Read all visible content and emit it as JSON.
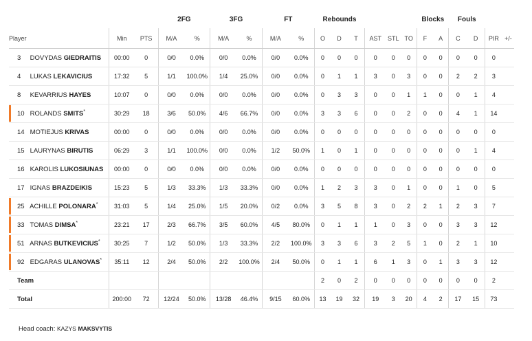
{
  "headers": {
    "groups": {
      "fg2": "2FG",
      "fg3": "3FG",
      "ft": "FT",
      "reb": "Rebounds",
      "blk": "Blocks",
      "fouls": "Fouls"
    },
    "cols": {
      "player": "Player",
      "min": "Min",
      "pts": "PTS",
      "fg2_ma": "M/A",
      "fg2_pct": "%",
      "fg3_ma": "M/A",
      "fg3_pct": "%",
      "ft_ma": "M/A",
      "ft_pct": "%",
      "o": "O",
      "d": "D",
      "t": "T",
      "ast": "AST",
      "stl": "STL",
      "to": "TO",
      "bf": "F",
      "ba": "A",
      "fc": "C",
      "fd": "D",
      "pir": "PIR",
      "pm": "+/-"
    }
  },
  "players": [
    {
      "num": "3",
      "first": "DOVYDAS",
      "last": "GIEDRAITIS",
      "starter": false,
      "min": "00:00",
      "pts": "0",
      "fg2_ma": "0/0",
      "fg2_pct": "0.0%",
      "fg3_ma": "0/0",
      "fg3_pct": "0.0%",
      "ft_ma": "0/0",
      "ft_pct": "0.0%",
      "o": "0",
      "d": "0",
      "t": "0",
      "ast": "0",
      "stl": "0",
      "to": "0",
      "bf": "0",
      "ba": "0",
      "fc": "0",
      "fd": "0",
      "pir": "0",
      "pm": ""
    },
    {
      "num": "4",
      "first": "LUKAS",
      "last": "LEKAVICIUS",
      "starter": false,
      "min": "17:32",
      "pts": "5",
      "fg2_ma": "1/1",
      "fg2_pct": "100.0%",
      "fg3_ma": "1/4",
      "fg3_pct": "25.0%",
      "ft_ma": "0/0",
      "ft_pct": "0.0%",
      "o": "0",
      "d": "1",
      "t": "1",
      "ast": "3",
      "stl": "0",
      "to": "3",
      "bf": "0",
      "ba": "0",
      "fc": "2",
      "fd": "2",
      "pir": "3",
      "pm": ""
    },
    {
      "num": "8",
      "first": "KEVARRIUS",
      "last": "HAYES",
      "starter": false,
      "min": "10:07",
      "pts": "0",
      "fg2_ma": "0/0",
      "fg2_pct": "0.0%",
      "fg3_ma": "0/0",
      "fg3_pct": "0.0%",
      "ft_ma": "0/0",
      "ft_pct": "0.0%",
      "o": "0",
      "d": "3",
      "t": "3",
      "ast": "0",
      "stl": "0",
      "to": "1",
      "bf": "1",
      "ba": "0",
      "fc": "0",
      "fd": "1",
      "pir": "4",
      "pm": ""
    },
    {
      "num": "10",
      "first": "ROLANDS",
      "last": "SMITS",
      "starter": true,
      "min": "30:29",
      "pts": "18",
      "fg2_ma": "3/6",
      "fg2_pct": "50.0%",
      "fg3_ma": "4/6",
      "fg3_pct": "66.7%",
      "ft_ma": "0/0",
      "ft_pct": "0.0%",
      "o": "3",
      "d": "3",
      "t": "6",
      "ast": "0",
      "stl": "0",
      "to": "2",
      "bf": "0",
      "ba": "0",
      "fc": "4",
      "fd": "1",
      "pir": "14",
      "pm": ""
    },
    {
      "num": "14",
      "first": "MOTIEJUS",
      "last": "KRIVAS",
      "starter": false,
      "min": "00:00",
      "pts": "0",
      "fg2_ma": "0/0",
      "fg2_pct": "0.0%",
      "fg3_ma": "0/0",
      "fg3_pct": "0.0%",
      "ft_ma": "0/0",
      "ft_pct": "0.0%",
      "o": "0",
      "d": "0",
      "t": "0",
      "ast": "0",
      "stl": "0",
      "to": "0",
      "bf": "0",
      "ba": "0",
      "fc": "0",
      "fd": "0",
      "pir": "0",
      "pm": ""
    },
    {
      "num": "15",
      "first": "LAURYNAS",
      "last": "BIRUTIS",
      "starter": false,
      "min": "06:29",
      "pts": "3",
      "fg2_ma": "1/1",
      "fg2_pct": "100.0%",
      "fg3_ma": "0/0",
      "fg3_pct": "0.0%",
      "ft_ma": "1/2",
      "ft_pct": "50.0%",
      "o": "1",
      "d": "0",
      "t": "1",
      "ast": "0",
      "stl": "0",
      "to": "0",
      "bf": "0",
      "ba": "0",
      "fc": "0",
      "fd": "1",
      "pir": "4",
      "pm": ""
    },
    {
      "num": "16",
      "first": "KAROLIS",
      "last": "LUKOSIUNAS",
      "starter": false,
      "min": "00:00",
      "pts": "0",
      "fg2_ma": "0/0",
      "fg2_pct": "0.0%",
      "fg3_ma": "0/0",
      "fg3_pct": "0.0%",
      "ft_ma": "0/0",
      "ft_pct": "0.0%",
      "o": "0",
      "d": "0",
      "t": "0",
      "ast": "0",
      "stl": "0",
      "to": "0",
      "bf": "0",
      "ba": "0",
      "fc": "0",
      "fd": "0",
      "pir": "0",
      "pm": ""
    },
    {
      "num": "17",
      "first": "IGNAS",
      "last": "BRAZDEIKIS",
      "starter": false,
      "min": "15:23",
      "pts": "5",
      "fg2_ma": "1/3",
      "fg2_pct": "33.3%",
      "fg3_ma": "1/3",
      "fg3_pct": "33.3%",
      "ft_ma": "0/0",
      "ft_pct": "0.0%",
      "o": "1",
      "d": "2",
      "t": "3",
      "ast": "3",
      "stl": "0",
      "to": "1",
      "bf": "0",
      "ba": "0",
      "fc": "1",
      "fd": "0",
      "pir": "5",
      "pm": ""
    },
    {
      "num": "25",
      "first": "ACHILLE",
      "last": "POLONARA",
      "starter": true,
      "min": "31:03",
      "pts": "5",
      "fg2_ma": "1/4",
      "fg2_pct": "25.0%",
      "fg3_ma": "1/5",
      "fg3_pct": "20.0%",
      "ft_ma": "0/2",
      "ft_pct": "0.0%",
      "o": "3",
      "d": "5",
      "t": "8",
      "ast": "3",
      "stl": "0",
      "to": "2",
      "bf": "2",
      "ba": "1",
      "fc": "2",
      "fd": "3",
      "pir": "7",
      "pm": ""
    },
    {
      "num": "33",
      "first": "TOMAS",
      "last": "DIMSA",
      "starter": true,
      "min": "23:21",
      "pts": "17",
      "fg2_ma": "2/3",
      "fg2_pct": "66.7%",
      "fg3_ma": "3/5",
      "fg3_pct": "60.0%",
      "ft_ma": "4/5",
      "ft_pct": "80.0%",
      "o": "0",
      "d": "1",
      "t": "1",
      "ast": "1",
      "stl": "0",
      "to": "3",
      "bf": "0",
      "ba": "0",
      "fc": "3",
      "fd": "3",
      "pir": "12",
      "pm": ""
    },
    {
      "num": "51",
      "first": "ARNAS",
      "last": "BUTKEVICIUS",
      "starter": true,
      "min": "30:25",
      "pts": "7",
      "fg2_ma": "1/2",
      "fg2_pct": "50.0%",
      "fg3_ma": "1/3",
      "fg3_pct": "33.3%",
      "ft_ma": "2/2",
      "ft_pct": "100.0%",
      "o": "3",
      "d": "3",
      "t": "6",
      "ast": "3",
      "stl": "2",
      "to": "5",
      "bf": "1",
      "ba": "0",
      "fc": "2",
      "fd": "1",
      "pir": "10",
      "pm": ""
    },
    {
      "num": "92",
      "first": "EDGARAS",
      "last": "ULANOVAS",
      "starter": true,
      "min": "35:11",
      "pts": "12",
      "fg2_ma": "2/4",
      "fg2_pct": "50.0%",
      "fg3_ma": "2/2",
      "fg3_pct": "100.0%",
      "ft_ma": "2/4",
      "ft_pct": "50.0%",
      "o": "0",
      "d": "1",
      "t": "1",
      "ast": "6",
      "stl": "1",
      "to": "3",
      "bf": "0",
      "ba": "1",
      "fc": "3",
      "fd": "3",
      "pir": "12",
      "pm": ""
    }
  ],
  "starter_mark": "*",
  "team": {
    "label": "Team",
    "min": "",
    "pts": "",
    "fg2_ma": "",
    "fg2_pct": "",
    "fg3_ma": "",
    "fg3_pct": "",
    "ft_ma": "",
    "ft_pct": "",
    "o": "2",
    "d": "0",
    "t": "2",
    "ast": "0",
    "stl": "0",
    "to": "0",
    "bf": "0",
    "ba": "0",
    "fc": "0",
    "fd": "0",
    "pir": "2",
    "pm": ""
  },
  "total": {
    "label": "Total",
    "min": "200:00",
    "pts": "72",
    "fg2_ma": "12/24",
    "fg2_pct": "50.0%",
    "fg3_ma": "13/28",
    "fg3_pct": "46.4%",
    "ft_ma": "9/15",
    "ft_pct": "60.0%",
    "o": "13",
    "d": "19",
    "t": "32",
    "ast": "19",
    "stl": "3",
    "to": "20",
    "bf": "4",
    "ba": "2",
    "fc": "17",
    "fd": "15",
    "pir": "73",
    "pm": ""
  },
  "coach": {
    "label": "Head coach:",
    "first": "KAZYS",
    "last": "MAKSVYTIS"
  },
  "colors": {
    "starter_bar": "#f07a28"
  }
}
